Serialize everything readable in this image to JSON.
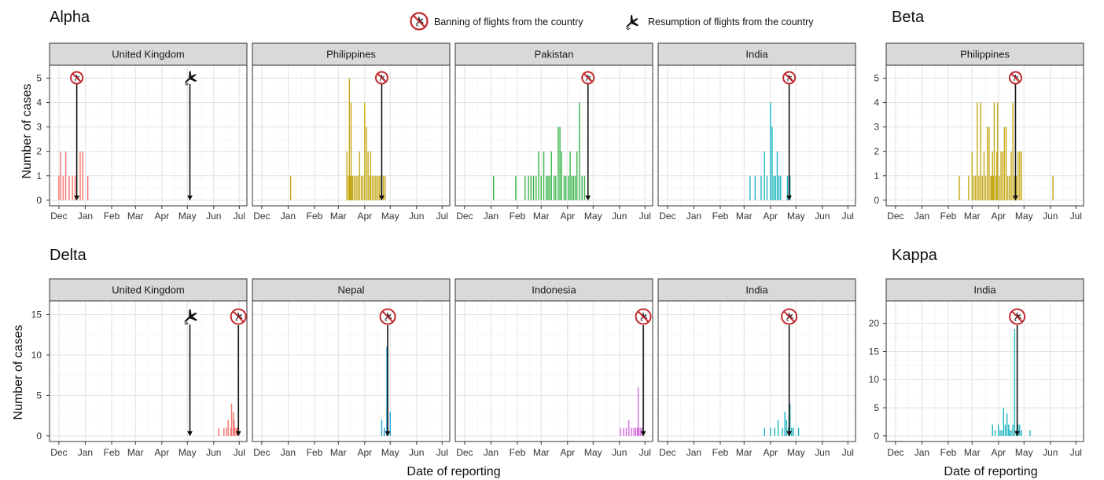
{
  "legend": {
    "ban_label": "Banning of flights from the country",
    "resume_label": "Resumption of flights from the country",
    "ban_icon": "plane-ban-icon",
    "resume_icon": "plane-takeoff-icon",
    "ban_color": "#c0282d"
  },
  "ylabel": "Number of cases",
  "xlabel": "Date of reporting",
  "month_ticks": [
    "Dec",
    "Jan",
    "Feb",
    "Mar",
    "Apr",
    "May",
    "Jun",
    "Jul"
  ],
  "chart_data": [
    {
      "type": "bar",
      "title": "Alpha",
      "ylim": [
        0,
        5.3
      ],
      "yticks": [
        0,
        1,
        2,
        3,
        4,
        5
      ],
      "panels": [
        {
          "name": "United Kingdom",
          "color": "#F8766D",
          "ban": "2020-12-22",
          "resume": "2021-05-04",
          "bars": [
            [
              "2020-12-01",
              1
            ],
            [
              "2020-12-03",
              2
            ],
            [
              "2020-12-06",
              1
            ],
            [
              "2020-12-09",
              2
            ],
            [
              "2020-12-13",
              1
            ],
            [
              "2020-12-17",
              1
            ],
            [
              "2020-12-20",
              1
            ],
            [
              "2020-12-26",
              2
            ],
            [
              "2020-12-29",
              2
            ],
            [
              "2021-01-04",
              1
            ]
          ]
        },
        {
          "name": "Philippines",
          "color": "#C6A918",
          "ban": "2021-04-21",
          "bars": [
            [
              "2021-01-04",
              1
            ],
            [
              "2021-03-11",
              2
            ],
            [
              "2021-03-13",
              1
            ],
            [
              "2021-03-14",
              5
            ],
            [
              "2021-03-15",
              1
            ],
            [
              "2021-03-16",
              4
            ],
            [
              "2021-03-17",
              1
            ],
            [
              "2021-03-18",
              1
            ],
            [
              "2021-03-20",
              1
            ],
            [
              "2021-03-22",
              1
            ],
            [
              "2021-03-24",
              1
            ],
            [
              "2021-03-26",
              2
            ],
            [
              "2021-03-28",
              1
            ],
            [
              "2021-03-30",
              1
            ],
            [
              "2021-04-01",
              4
            ],
            [
              "2021-04-03",
              3
            ],
            [
              "2021-04-05",
              2
            ],
            [
              "2021-04-07",
              1
            ],
            [
              "2021-04-08",
              2
            ],
            [
              "2021-04-10",
              1
            ],
            [
              "2021-04-12",
              1
            ],
            [
              "2021-04-14",
              1
            ],
            [
              "2021-04-16",
              1
            ],
            [
              "2021-04-18",
              1
            ],
            [
              "2021-04-20",
              1
            ],
            [
              "2021-04-23",
              1
            ],
            [
              "2021-04-25",
              1
            ]
          ]
        },
        {
          "name": "Pakistan",
          "color": "#39B54A",
          "ban": "2021-04-25",
          "bars": [
            [
              "2021-01-04",
              1
            ],
            [
              "2021-01-30",
              1
            ],
            [
              "2021-02-10",
              1
            ],
            [
              "2021-02-14",
              1
            ],
            [
              "2021-02-17",
              1
            ],
            [
              "2021-02-20",
              1
            ],
            [
              "2021-02-23",
              1
            ],
            [
              "2021-02-26",
              2
            ],
            [
              "2021-03-01",
              1
            ],
            [
              "2021-03-04",
              2
            ],
            [
              "2021-03-07",
              1
            ],
            [
              "2021-03-09",
              1
            ],
            [
              "2021-03-11",
              1
            ],
            [
              "2021-03-13",
              2
            ],
            [
              "2021-03-16",
              1
            ],
            [
              "2021-03-18",
              1
            ],
            [
              "2021-03-21",
              3
            ],
            [
              "2021-03-23",
              3
            ],
            [
              "2021-03-25",
              2
            ],
            [
              "2021-03-28",
              1
            ],
            [
              "2021-03-30",
              1
            ],
            [
              "2021-04-02",
              1
            ],
            [
              "2021-04-04",
              2
            ],
            [
              "2021-04-06",
              1
            ],
            [
              "2021-04-08",
              1
            ],
            [
              "2021-04-10",
              1
            ],
            [
              "2021-04-12",
              2
            ],
            [
              "2021-04-15",
              4
            ],
            [
              "2021-04-18",
              1
            ],
            [
              "2021-04-21",
              1
            ],
            [
              "2021-04-25",
              1
            ]
          ]
        },
        {
          "name": "India",
          "color": "#1FB5C0",
          "ban": "2021-04-23",
          "bars": [
            [
              "2021-03-08",
              1
            ],
            [
              "2021-03-14",
              1
            ],
            [
              "2021-03-21",
              1
            ],
            [
              "2021-03-25",
              2
            ],
            [
              "2021-03-28",
              1
            ],
            [
              "2021-04-01",
              4
            ],
            [
              "2021-04-03",
              3
            ],
            [
              "2021-04-05",
              1
            ],
            [
              "2021-04-07",
              1
            ],
            [
              "2021-04-09",
              2
            ],
            [
              "2021-04-11",
              1
            ],
            [
              "2021-04-13",
              1
            ],
            [
              "2021-04-21",
              1
            ],
            [
              "2021-04-24",
              1
            ]
          ]
        }
      ]
    },
    {
      "type": "bar",
      "title": "Beta",
      "ylim": [
        0,
        5.3
      ],
      "yticks": [
        0,
        1,
        2,
        3,
        4,
        5
      ],
      "panels": [
        {
          "name": "Philippines",
          "color": "#C6A918",
          "ban": "2021-04-21",
          "bars": [
            [
              "2021-02-14",
              1
            ],
            [
              "2021-02-25",
              1
            ],
            [
              "2021-03-01",
              2
            ],
            [
              "2021-03-03",
              1
            ],
            [
              "2021-03-05",
              1
            ],
            [
              "2021-03-07",
              4
            ],
            [
              "2021-03-09",
              1
            ],
            [
              "2021-03-11",
              4
            ],
            [
              "2021-03-13",
              1
            ],
            [
              "2021-03-15",
              2
            ],
            [
              "2021-03-17",
              1
            ],
            [
              "2021-03-19",
              3
            ],
            [
              "2021-03-21",
              3
            ],
            [
              "2021-03-23",
              1
            ],
            [
              "2021-03-24",
              1
            ],
            [
              "2021-03-25",
              2
            ],
            [
              "2021-03-26",
              1
            ],
            [
              "2021-03-27",
              4
            ],
            [
              "2021-03-29",
              1
            ],
            [
              "2021-03-30",
              2
            ],
            [
              "2021-03-31",
              4
            ],
            [
              "2021-04-02",
              1
            ],
            [
              "2021-04-04",
              2
            ],
            [
              "2021-04-06",
              2
            ],
            [
              "2021-04-08",
              3
            ],
            [
              "2021-04-10",
              3
            ],
            [
              "2021-04-12",
              1
            ],
            [
              "2021-04-14",
              1
            ],
            [
              "2021-04-16",
              2
            ],
            [
              "2021-04-18",
              4
            ],
            [
              "2021-04-20",
              1
            ],
            [
              "2021-04-22",
              1
            ],
            [
              "2021-04-24",
              2
            ],
            [
              "2021-04-26",
              2
            ],
            [
              "2021-04-28",
              2
            ],
            [
              "2021-06-04",
              1
            ]
          ]
        }
      ]
    },
    {
      "type": "bar",
      "title": "Delta",
      "ylim": [
        0,
        16
      ],
      "yticks": [
        0,
        5,
        10,
        15
      ],
      "panels": [
        {
          "name": "United Kingdom",
          "color": "#F8766D",
          "ban": "2021-06-30",
          "resume": "2021-05-04",
          "bars": [
            [
              "2021-06-07",
              1
            ],
            [
              "2021-06-13",
              1
            ],
            [
              "2021-06-16",
              1
            ],
            [
              "2021-06-18",
              2
            ],
            [
              "2021-06-21",
              1
            ],
            [
              "2021-06-22",
              4
            ],
            [
              "2021-06-24",
              3
            ],
            [
              "2021-06-25",
              2
            ],
            [
              "2021-06-26",
              1
            ],
            [
              "2021-06-28",
              1
            ],
            [
              "2021-06-29",
              1
            ]
          ]
        },
        {
          "name": "Nepal",
          "color": "#1EA6E0",
          "ban": "2021-04-28",
          "bars": [
            [
              "2021-04-21",
              2
            ],
            [
              "2021-04-24",
              1
            ],
            [
              "2021-04-27",
              11
            ],
            [
              "2021-04-28",
              1
            ],
            [
              "2021-05-01",
              3
            ]
          ]
        },
        {
          "name": "Indonesia",
          "color": "#D96BE3",
          "ban": "2021-06-29",
          "bars": [
            [
              "2021-06-02",
              1
            ],
            [
              "2021-06-06",
              1
            ],
            [
              "2021-06-09",
              1
            ],
            [
              "2021-06-12",
              2
            ],
            [
              "2021-06-15",
              1
            ],
            [
              "2021-06-18",
              1
            ],
            [
              "2021-06-20",
              1
            ],
            [
              "2021-06-22",
              1
            ],
            [
              "2021-06-23",
              6
            ],
            [
              "2021-06-24",
              1
            ],
            [
              "2021-06-26",
              1
            ],
            [
              "2021-06-28",
              1
            ]
          ]
        },
        {
          "name": "India",
          "color": "#1FB5C0",
          "ban": "2021-04-23",
          "bars": [
            [
              "2021-03-25",
              1
            ],
            [
              "2021-04-01",
              1
            ],
            [
              "2021-04-06",
              1
            ],
            [
              "2021-04-10",
              2
            ],
            [
              "2021-04-15",
              1
            ],
            [
              "2021-04-18",
              3
            ],
            [
              "2021-04-20",
              2
            ],
            [
              "2021-04-22",
              1
            ],
            [
              "2021-04-24",
              4
            ],
            [
              "2021-04-26",
              1
            ],
            [
              "2021-04-28",
              1
            ],
            [
              "2021-05-04",
              1
            ]
          ]
        }
      ]
    },
    {
      "type": "bar",
      "title": "Kappa",
      "ylim": [
        0,
        23
      ],
      "yticks": [
        0,
        5,
        10,
        15,
        20
      ],
      "panels": [
        {
          "name": "India",
          "color": "#1FB5C0",
          "ban": "2021-04-23",
          "bars": [
            [
              "2021-03-25",
              2
            ],
            [
              "2021-03-28",
              1
            ],
            [
              "2021-04-01",
              2
            ],
            [
              "2021-04-03",
              1
            ],
            [
              "2021-04-05",
              1
            ],
            [
              "2021-04-07",
              5
            ],
            [
              "2021-04-09",
              2
            ],
            [
              "2021-04-11",
              4
            ],
            [
              "2021-04-13",
              2
            ],
            [
              "2021-04-14",
              1
            ],
            [
              "2021-04-16",
              1
            ],
            [
              "2021-04-18",
              2
            ],
            [
              "2021-04-20",
              19
            ],
            [
              "2021-04-22",
              1
            ],
            [
              "2021-04-24",
              2
            ],
            [
              "2021-04-26",
              2
            ],
            [
              "2021-04-28",
              1
            ],
            [
              "2021-05-08",
              1
            ]
          ]
        }
      ]
    }
  ]
}
